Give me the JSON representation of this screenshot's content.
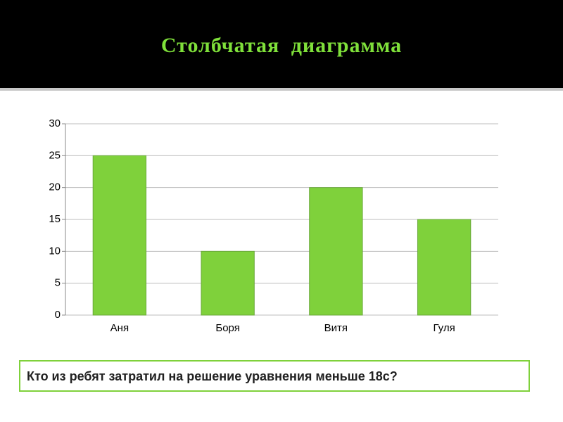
{
  "chart_data": {
    "type": "bar",
    "title": "Столбчатая диаграмма",
    "categories": [
      "Аня",
      "Боря",
      "Витя",
      "Гуля"
    ],
    "values": [
      25,
      10,
      20,
      15
    ],
    "color": "#7fd13b",
    "ylim": [
      0,
      30
    ],
    "yticks": [
      0,
      5,
      10,
      15,
      20,
      25,
      30
    ],
    "grid": true
  },
  "question": "Кто из ребят затратил на решение уравнения меньше 18с?"
}
